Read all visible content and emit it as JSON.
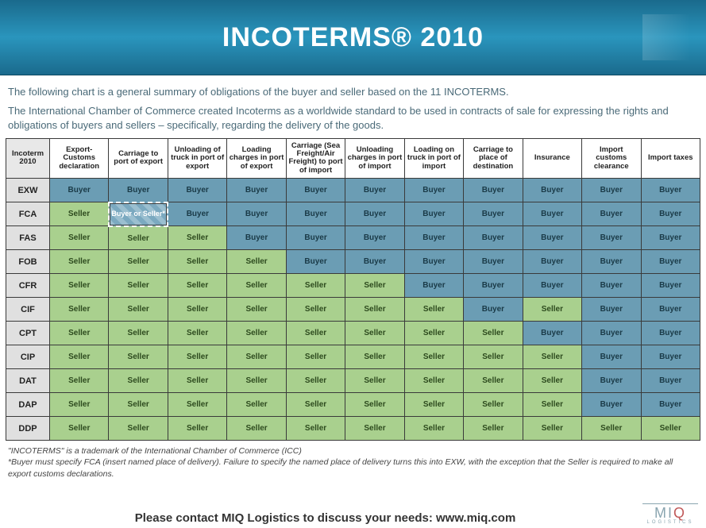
{
  "header": {
    "title": "INCOTERMS® 2010"
  },
  "intro": {
    "p1": "The following chart is a general summary of obligations of the buyer and seller based on the 11 INCOTERMS.",
    "p2": "The International Chamber of Commerce created Incoterms as a worldwide standard to be used in contracts of sale for expressing the rights and obligations of buyers and sellers – specifically, regarding the delivery of the goods."
  },
  "table": {
    "corner_label": "Incoterm 2010",
    "columns": [
      "Export-Customs declaration",
      "Carriage to port of export",
      "Unloading of truck in port of export",
      "Loading charges in port of export",
      "Carriage (Sea Freight/Air Freight) to port of import",
      "Unloading charges in port of import",
      "Loading on truck in port of import",
      "Carriage to place of destination",
      "Insurance",
      "Import customs clearance",
      "Import taxes"
    ],
    "value_labels": {
      "seller": "Seller",
      "buyer": "Buyer",
      "both": "Buyer or Seller*"
    },
    "colors": {
      "seller_bg": "#a9d08e",
      "buyer_bg": "#6b9db4",
      "rowhead_bg": "#e0e0e0",
      "header_bg": "#ffffff"
    },
    "rows": [
      {
        "code": "EXW",
        "cells": [
          "buyer",
          "buyer",
          "buyer",
          "buyer",
          "buyer",
          "buyer",
          "buyer",
          "buyer",
          "buyer",
          "buyer",
          "buyer"
        ]
      },
      {
        "code": "FCA",
        "cells": [
          "seller",
          "both",
          "buyer",
          "buyer",
          "buyer",
          "buyer",
          "buyer",
          "buyer",
          "buyer",
          "buyer",
          "buyer"
        ]
      },
      {
        "code": "FAS",
        "cells": [
          "seller",
          "seller",
          "seller",
          "buyer",
          "buyer",
          "buyer",
          "buyer",
          "buyer",
          "buyer",
          "buyer",
          "buyer"
        ]
      },
      {
        "code": "FOB",
        "cells": [
          "seller",
          "seller",
          "seller",
          "seller",
          "buyer",
          "buyer",
          "buyer",
          "buyer",
          "buyer",
          "buyer",
          "buyer"
        ]
      },
      {
        "code": "CFR",
        "cells": [
          "seller",
          "seller",
          "seller",
          "seller",
          "seller",
          "seller",
          "buyer",
          "buyer",
          "buyer",
          "buyer",
          "buyer"
        ]
      },
      {
        "code": "CIF",
        "cells": [
          "seller",
          "seller",
          "seller",
          "seller",
          "seller",
          "seller",
          "seller",
          "buyer",
          "seller",
          "buyer",
          "buyer"
        ]
      },
      {
        "code": "CPT",
        "cells": [
          "seller",
          "seller",
          "seller",
          "seller",
          "seller",
          "seller",
          "seller",
          "seller",
          "buyer",
          "buyer",
          "buyer"
        ]
      },
      {
        "code": "CIP",
        "cells": [
          "seller",
          "seller",
          "seller",
          "seller",
          "seller",
          "seller",
          "seller",
          "seller",
          "seller",
          "buyer",
          "buyer"
        ]
      },
      {
        "code": "DAT",
        "cells": [
          "seller",
          "seller",
          "seller",
          "seller",
          "seller",
          "seller",
          "seller",
          "seller",
          "seller",
          "buyer",
          "buyer"
        ]
      },
      {
        "code": "DAP",
        "cells": [
          "seller",
          "seller",
          "seller",
          "seller",
          "seller",
          "seller",
          "seller",
          "seller",
          "seller",
          "buyer",
          "buyer"
        ]
      },
      {
        "code": "DDP",
        "cells": [
          "seller",
          "seller",
          "seller",
          "seller",
          "seller",
          "seller",
          "seller",
          "seller",
          "seller",
          "seller",
          "seller"
        ]
      }
    ]
  },
  "footnotes": {
    "f1": "\"INCOTERMS\" is a trademark of the International Chamber of Commerce (ICC)",
    "f2": "*Buyer must specify FCA (insert named place of delivery). Failure to specify the named place of delivery turns this into EXW, with the exception that the Seller is required to make all export customs declarations."
  },
  "footer": {
    "contact": "Please contact MIQ Logistics to discuss your needs: www.miq.com",
    "logo_main_pre": "MI",
    "logo_main_q": "Q",
    "logo_sub": "LOGISTICS"
  }
}
